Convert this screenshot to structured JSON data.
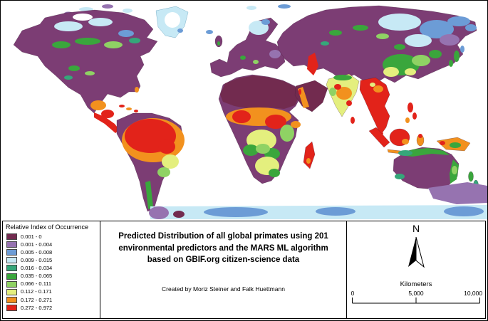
{
  "map": {
    "name": "predicted-primate-distribution-world-map",
    "ocean_color": "#ffffff"
  },
  "legend": {
    "title": "Relative Index of Occurrence",
    "items": [
      {
        "label": "0.001 - 0",
        "color": "#722B4F"
      },
      {
        "label": "0.001 - 0.004",
        "color": "#9673B0"
      },
      {
        "label": "0.005 - 0.008",
        "color": "#6C9CD6"
      },
      {
        "label": "0.009 - 0.015",
        "color": "#C7E9F5"
      },
      {
        "label": "0.016 - 0.034",
        "color": "#35A77A"
      },
      {
        "label": "0.035 - 0.065",
        "color": "#3AA63C"
      },
      {
        "label": "0.066 - 0.111",
        "color": "#8FD264"
      },
      {
        "label": "0.112 - 0.171",
        "color": "#E4EF7E"
      },
      {
        "label": "0.172 - 0.271",
        "color": "#F2911E"
      },
      {
        "label": "0.272 - 0.972",
        "color": "#E2231A"
      }
    ]
  },
  "title_box": {
    "line1": "Predicted Distribution of all global primates using 201",
    "line2": "environmental predictors and the MARS ML algorithm",
    "line3": "based on GBIF.org citizen-science data",
    "credit": "Created by Moriz Steiner and Falk Huettmann"
  },
  "scale": {
    "north_label": "N",
    "units_label": "Kilometers",
    "ticks": [
      "0",
      "5,000",
      "10,000"
    ]
  },
  "palette": {
    "purple": "#7C3D74",
    "plum": "#722B4F",
    "lavender": "#9673B0",
    "blue": "#6C9CD6",
    "paleblue": "#C7E9F5",
    "teal": "#35A77A",
    "green": "#3AA63C",
    "lightgreen": "#8FD264",
    "paleyellow": "#E4EF7E",
    "orange": "#F2911E",
    "red": "#E2231A"
  }
}
